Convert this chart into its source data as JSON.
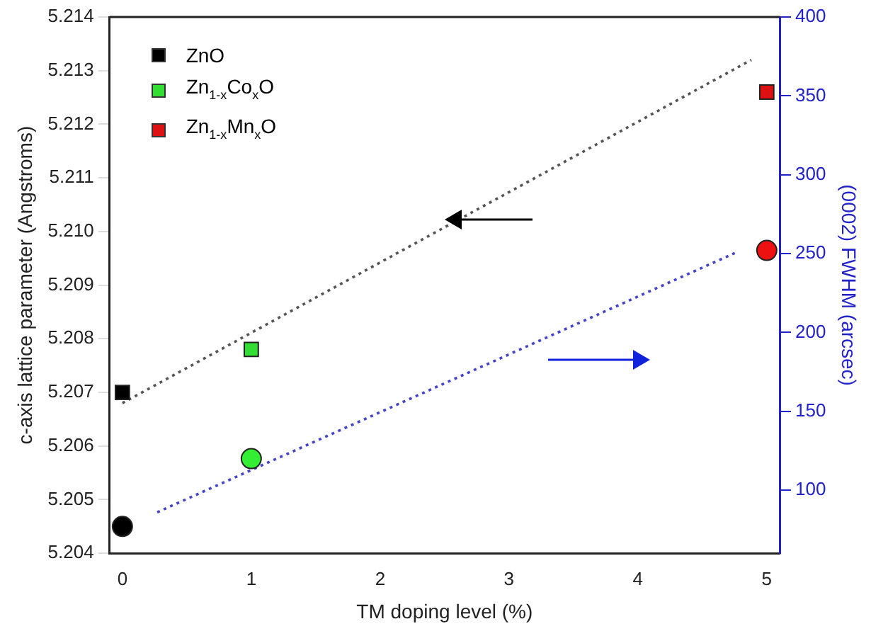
{
  "chart_data": {
    "type": "scatter",
    "xlabel": "TM doping level (%)",
    "ylabel": "c-axis lattice parameter (Angstroms)",
    "y2label": "(0002) FWHM (arcsec)",
    "xlim": [
      -0.1,
      5.1
    ],
    "xticks": [
      0,
      1,
      2,
      3,
      4,
      5
    ],
    "ylim": [
      5.204,
      5.214
    ],
    "yticks": [
      5.204,
      5.205,
      5.206,
      5.207,
      5.208,
      5.209,
      {
        "value": 5.21,
        "label": "5.210"
      },
      5.211,
      5.212,
      5.213,
      5.214
    ],
    "y2lim": [
      60,
      400
    ],
    "y2ticks": [
      100,
      150,
      200,
      250,
      300,
      350,
      400
    ],
    "legend": "top left",
    "grid": false,
    "series": [
      {
        "name": "ZnO",
        "marker": "square",
        "color": "#000000",
        "x": [
          0
        ],
        "values": [
          5.207
        ]
      },
      {
        "name": "Zn$_{1-x}$Co$_{x}$O",
        "marker": "square",
        "color": "#33dd33",
        "x": [
          1
        ],
        "values": [
          5.2078
        ]
      },
      {
        "name": "Zn$_{1-x}$Mn$_{x}$O",
        "marker": "square",
        "color": "#dd1111",
        "x": [
          5
        ],
        "values": [
          5.2126
        ]
      },
      {
        "marker": "circle",
        "axis": "y2",
        "colors": [
          "#000000",
          "#33ee33",
          "#ee1111"
        ],
        "x": [
          0,
          1,
          5
        ],
        "values": [
          77,
          120,
          252
        ]
      },
      {
        "type": "line",
        "marker": "none",
        "line_style": "dotted",
        "color": "#555555",
        "x": [
          0,
          4.88
        ],
        "values": [
          5.2068,
          5.2132
        ]
      },
      {
        "type": "line",
        "marker": "none",
        "line_style": "dotted",
        "axis": "y2",
        "color": "#4444cc",
        "x": [
          0.27,
          4.77
        ],
        "values": [
          86,
          251
        ]
      }
    ]
  }
}
